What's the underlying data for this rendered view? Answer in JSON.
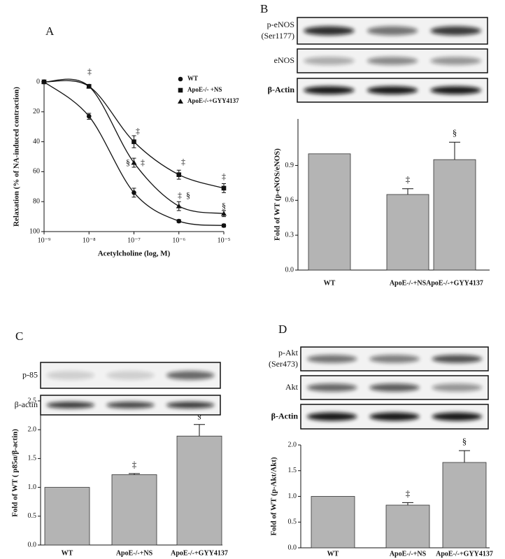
{
  "chart_data": [
    {
      "type": "line",
      "panel": "A",
      "xlabel": "Acetylcholine (log, M)",
      "ylabel": "Relaxation (% of NA-induced contraction)",
      "x": [
        1e-09,
        1e-08,
        1e-07,
        1e-06,
        1e-05
      ],
      "xlog": true,
      "xlim": [
        1e-09,
        1e-05
      ],
      "xticks": [
        {
          "value": 1e-09,
          "label": "10⁻⁹"
        },
        {
          "value": 1e-08,
          "label": "10⁻⁸"
        },
        {
          "value": 1e-07,
          "label": "10⁻⁷"
        },
        {
          "value": 1e-06,
          "label": "10⁻⁶"
        },
        {
          "value": 1e-05,
          "label": "10⁻⁵"
        }
      ],
      "ylim": [
        0,
        100
      ],
      "y_inverted": true,
      "yticks": [
        0,
        20,
        40,
        60,
        80,
        100
      ],
      "series": [
        {
          "name": "WT",
          "marker": "circle",
          "color": "#111111",
          "values": [
            0,
            23,
            74,
            93,
            96
          ],
          "errors": [
            0,
            2,
            3,
            1,
            1
          ]
        },
        {
          "name": "ApoE-/- +NS",
          "marker": "square",
          "color": "#111111",
          "values": [
            0,
            3,
            40,
            62,
            71
          ],
          "errors": [
            0,
            1,
            4,
            3,
            3
          ]
        },
        {
          "name": "ApoE-/-+GYY4137",
          "marker": "triangle",
          "color": "#111111",
          "values": [
            0,
            3,
            54,
            83,
            88
          ],
          "errors": [
            0,
            1,
            3,
            3,
            2
          ]
        }
      ],
      "annotations": [
        "‡",
        "‡",
        "§",
        "‡",
        "‡",
        "‡",
        "‡",
        "§",
        "§"
      ]
    },
    {
      "type": "bar",
      "panel": "B",
      "ylabel": "Fold of WT (p-eNOS/eNOS)",
      "categories": [
        "WT",
        "ApoE-/-+NS",
        "ApoE-/-+GYY4137"
      ],
      "values": [
        1.0,
        0.65,
        0.95
      ],
      "errors": [
        0,
        0.05,
        0.15
      ],
      "color": "#b4b4b4",
      "ylim": [
        0,
        1.3
      ],
      "yticks": [
        {
          "value": 0,
          "label": "0.0"
        },
        0.3,
        0.6,
        0.9
      ],
      "annotations": [
        "‡",
        "§"
      ]
    },
    {
      "type": "bar",
      "panel": "C",
      "ylabel": "Fold of WT ( p85α/β-actin)",
      "categories": [
        "WT",
        "ApoE-/-+NS",
        "ApoE-/-+GYY4137"
      ],
      "values": [
        1.0,
        1.22,
        1.89
      ],
      "errors": [
        0,
        0.02,
        0.2
      ],
      "color": "#b4b4b4",
      "ylim": [
        0,
        2.5
      ],
      "yticks": [
        {
          "value": 0,
          "label": "0.0"
        },
        0.5,
        {
          "value": 1,
          "label": "1.0"
        },
        1.5,
        {
          "value": 2,
          "label": "2.0"
        },
        2.5
      ],
      "annotations": [
        "‡",
        "§"
      ]
    },
    {
      "type": "bar",
      "panel": "D",
      "ylabel": "Fold of WT (p-Akt/Akt)",
      "categories": [
        "WT",
        "ApoE-/-+NS",
        "ApoE-/-+GYY4137"
      ],
      "values": [
        1.0,
        0.83,
        1.66
      ],
      "errors": [
        0,
        0.05,
        0.23
      ],
      "color": "#b4b4b4",
      "ylim": [
        0,
        2.0
      ],
      "yticks": [
        {
          "value": 0,
          "label": "0.0"
        },
        0.5,
        {
          "value": 1,
          "label": "1.0"
        },
        1.5,
        {
          "value": 2,
          "label": "2.0"
        }
      ],
      "annotations": [
        "‡",
        "§"
      ]
    }
  ],
  "blots": [
    {
      "rows": [
        {
          "label": "p-eNOS",
          "sublabel": "(Ser1177)"
        },
        {
          "label": "eNOS"
        },
        {
          "label": "β-Actin"
        }
      ]
    },
    {
      "rows": [
        {
          "label": "p-85"
        },
        {
          "label": "β-actin"
        }
      ]
    },
    {
      "rows": [
        {
          "label": "p-Akt",
          "sublabel": "(Ser473)"
        },
        {
          "label": "Akt"
        },
        {
          "label": "β-Actin"
        }
      ]
    }
  ]
}
